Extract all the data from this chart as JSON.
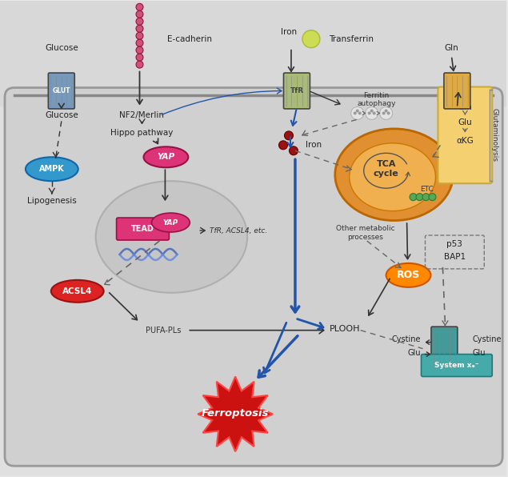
{
  "fig_width": 6.35,
  "fig_height": 5.96,
  "labels": {
    "glucose_top": "Glucose",
    "glut": "GLUT",
    "glucose_inner": "Glucose",
    "ampk": "AMPK",
    "lipogenesis": "Lipogenesis",
    "ecadherin": "E-cadherin",
    "nf2": "NF2/Merlin",
    "hippo": "Hippo pathway",
    "yap1": "YAP",
    "yap2": "YAP",
    "tead": "TEAD",
    "gene": "TfR, ACSL4, etc.",
    "acsl4": "ACSL4",
    "pufa": "PUFA-PLs",
    "iron_top": "Iron",
    "transferrin": "Transferrin",
    "tfr": "TfR",
    "ferritin": "Ferritin\nautophagy",
    "iron_inner": "Iron",
    "tca": "TCA\ncycle",
    "etc": "ETC",
    "other_metabolic": "Other metabolic\nprocesses",
    "ros": "ROS",
    "plooh": "PLOOH",
    "ferroptosis": "Ferroptosis",
    "gln_top": "Gln",
    "glutaminolysis": "Glutaminolysis",
    "p53": "p53",
    "bap1": "BAP1",
    "cystine_top": "Cystine",
    "cystine_bot": "Cystine",
    "glu_top": "Glu",
    "glu_bot": "Glu",
    "system_xc": "System xₑ⁻",
    "gln_label": "Gln",
    "glu_label": "Glu",
    "akg_label": "αKG"
  },
  "colors": {
    "cell_bg": "#d2d2d2",
    "outer_bg": "#e4e4e4",
    "nucleus_bg": "#bebebe",
    "glut_color": "#7799bb",
    "ampk_color": "#3399cc",
    "yap_color": "#dd3377",
    "tead_color": "#dd3377",
    "acsl4_color": "#dd2222",
    "ros_color": "#ff8800",
    "mitochondria_outer": "#e09030",
    "mitochondria_inner": "#f0b050",
    "tfr_color": "#aabb77",
    "gln_transporter_color": "#ddaa44",
    "system_xc_color": "#449999",
    "transferrin_color": "#ccdd55",
    "ferroptosis_fill": "#cc1111",
    "ferroptosis_edge": "#ff4444",
    "arrow_dark": "#333333",
    "arrow_blue": "#2255aa",
    "arrow_gray": "#666666",
    "iron_color": "#991111",
    "gln_box_color": "#f5d070",
    "dna_color1": "#4466bb",
    "dna_color2": "#6688dd"
  }
}
